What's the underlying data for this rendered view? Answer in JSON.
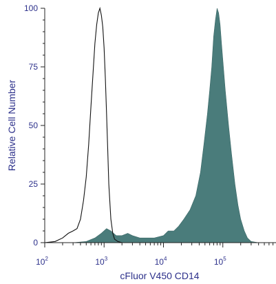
{
  "chart_data": {
    "type": "area",
    "xlabel": "cFluor V450 CD14",
    "ylabel": "Relative Cell Number",
    "x_scale": "log",
    "xlim": [
      100,
      1000000
    ],
    "ylim": [
      0,
      100
    ],
    "x_ticks": [
      {
        "value": 100,
        "base": "10",
        "exp": "2"
      },
      {
        "value": 1000,
        "base": "10",
        "exp": "3"
      },
      {
        "value": 10000,
        "base": "10",
        "exp": "4"
      },
      {
        "value": 100000,
        "base": "10",
        "exp": "5"
      }
    ],
    "y_ticks": [
      {
        "value": 0,
        "label": "0"
      },
      {
        "value": 25,
        "label": "25"
      },
      {
        "value": 50,
        "label": "50"
      },
      {
        "value": 75,
        "label": "75"
      },
      {
        "value": 100,
        "label": "100"
      }
    ],
    "grid": false,
    "legend": "none",
    "series": [
      {
        "style": "filled",
        "color": "#4a7c7b",
        "x": [
          100,
          300,
          500,
          700,
          900,
          1100,
          1300,
          1600,
          2000,
          2500,
          3000,
          4000,
          5000,
          7000,
          10000,
          12000,
          15000,
          18000,
          22000,
          28000,
          35000,
          42000,
          48000,
          55000,
          60000,
          65000,
          70000,
          75000,
          80000,
          85000,
          90000,
          95000,
          100000,
          110000,
          125000,
          140000,
          160000,
          180000,
          200000,
          230000,
          260000,
          300000,
          400000,
          1000000
        ],
        "y": [
          0,
          0,
          0.5,
          2,
          4,
          6,
          5,
          3,
          3,
          4,
          3,
          2,
          2,
          2,
          3,
          5,
          5,
          7,
          10,
          14,
          20,
          30,
          42,
          55,
          65,
          75,
          88,
          95,
          100,
          98,
          93,
          85,
          78,
          65,
          50,
          38,
          25,
          16,
          10,
          5,
          2,
          0.5,
          0,
          0
        ]
      },
      {
        "style": "outline",
        "color": "#111111",
        "x": [
          100,
          150,
          200,
          250,
          300,
          350,
          400,
          450,
          500,
          550,
          600,
          650,
          700,
          750,
          800,
          850,
          900,
          950,
          1000,
          1050,
          1100,
          1150,
          1200,
          1300,
          1400,
          1500,
          1700,
          2000,
          3000,
          1000000
        ],
        "y": [
          0,
          0.5,
          2,
          4,
          5,
          6,
          10,
          18,
          28,
          42,
          58,
          72,
          85,
          93,
          98,
          100,
          97,
          92,
          83,
          70,
          55,
          40,
          25,
          10,
          4,
          1.5,
          0.5,
          0,
          0,
          0
        ]
      }
    ]
  }
}
